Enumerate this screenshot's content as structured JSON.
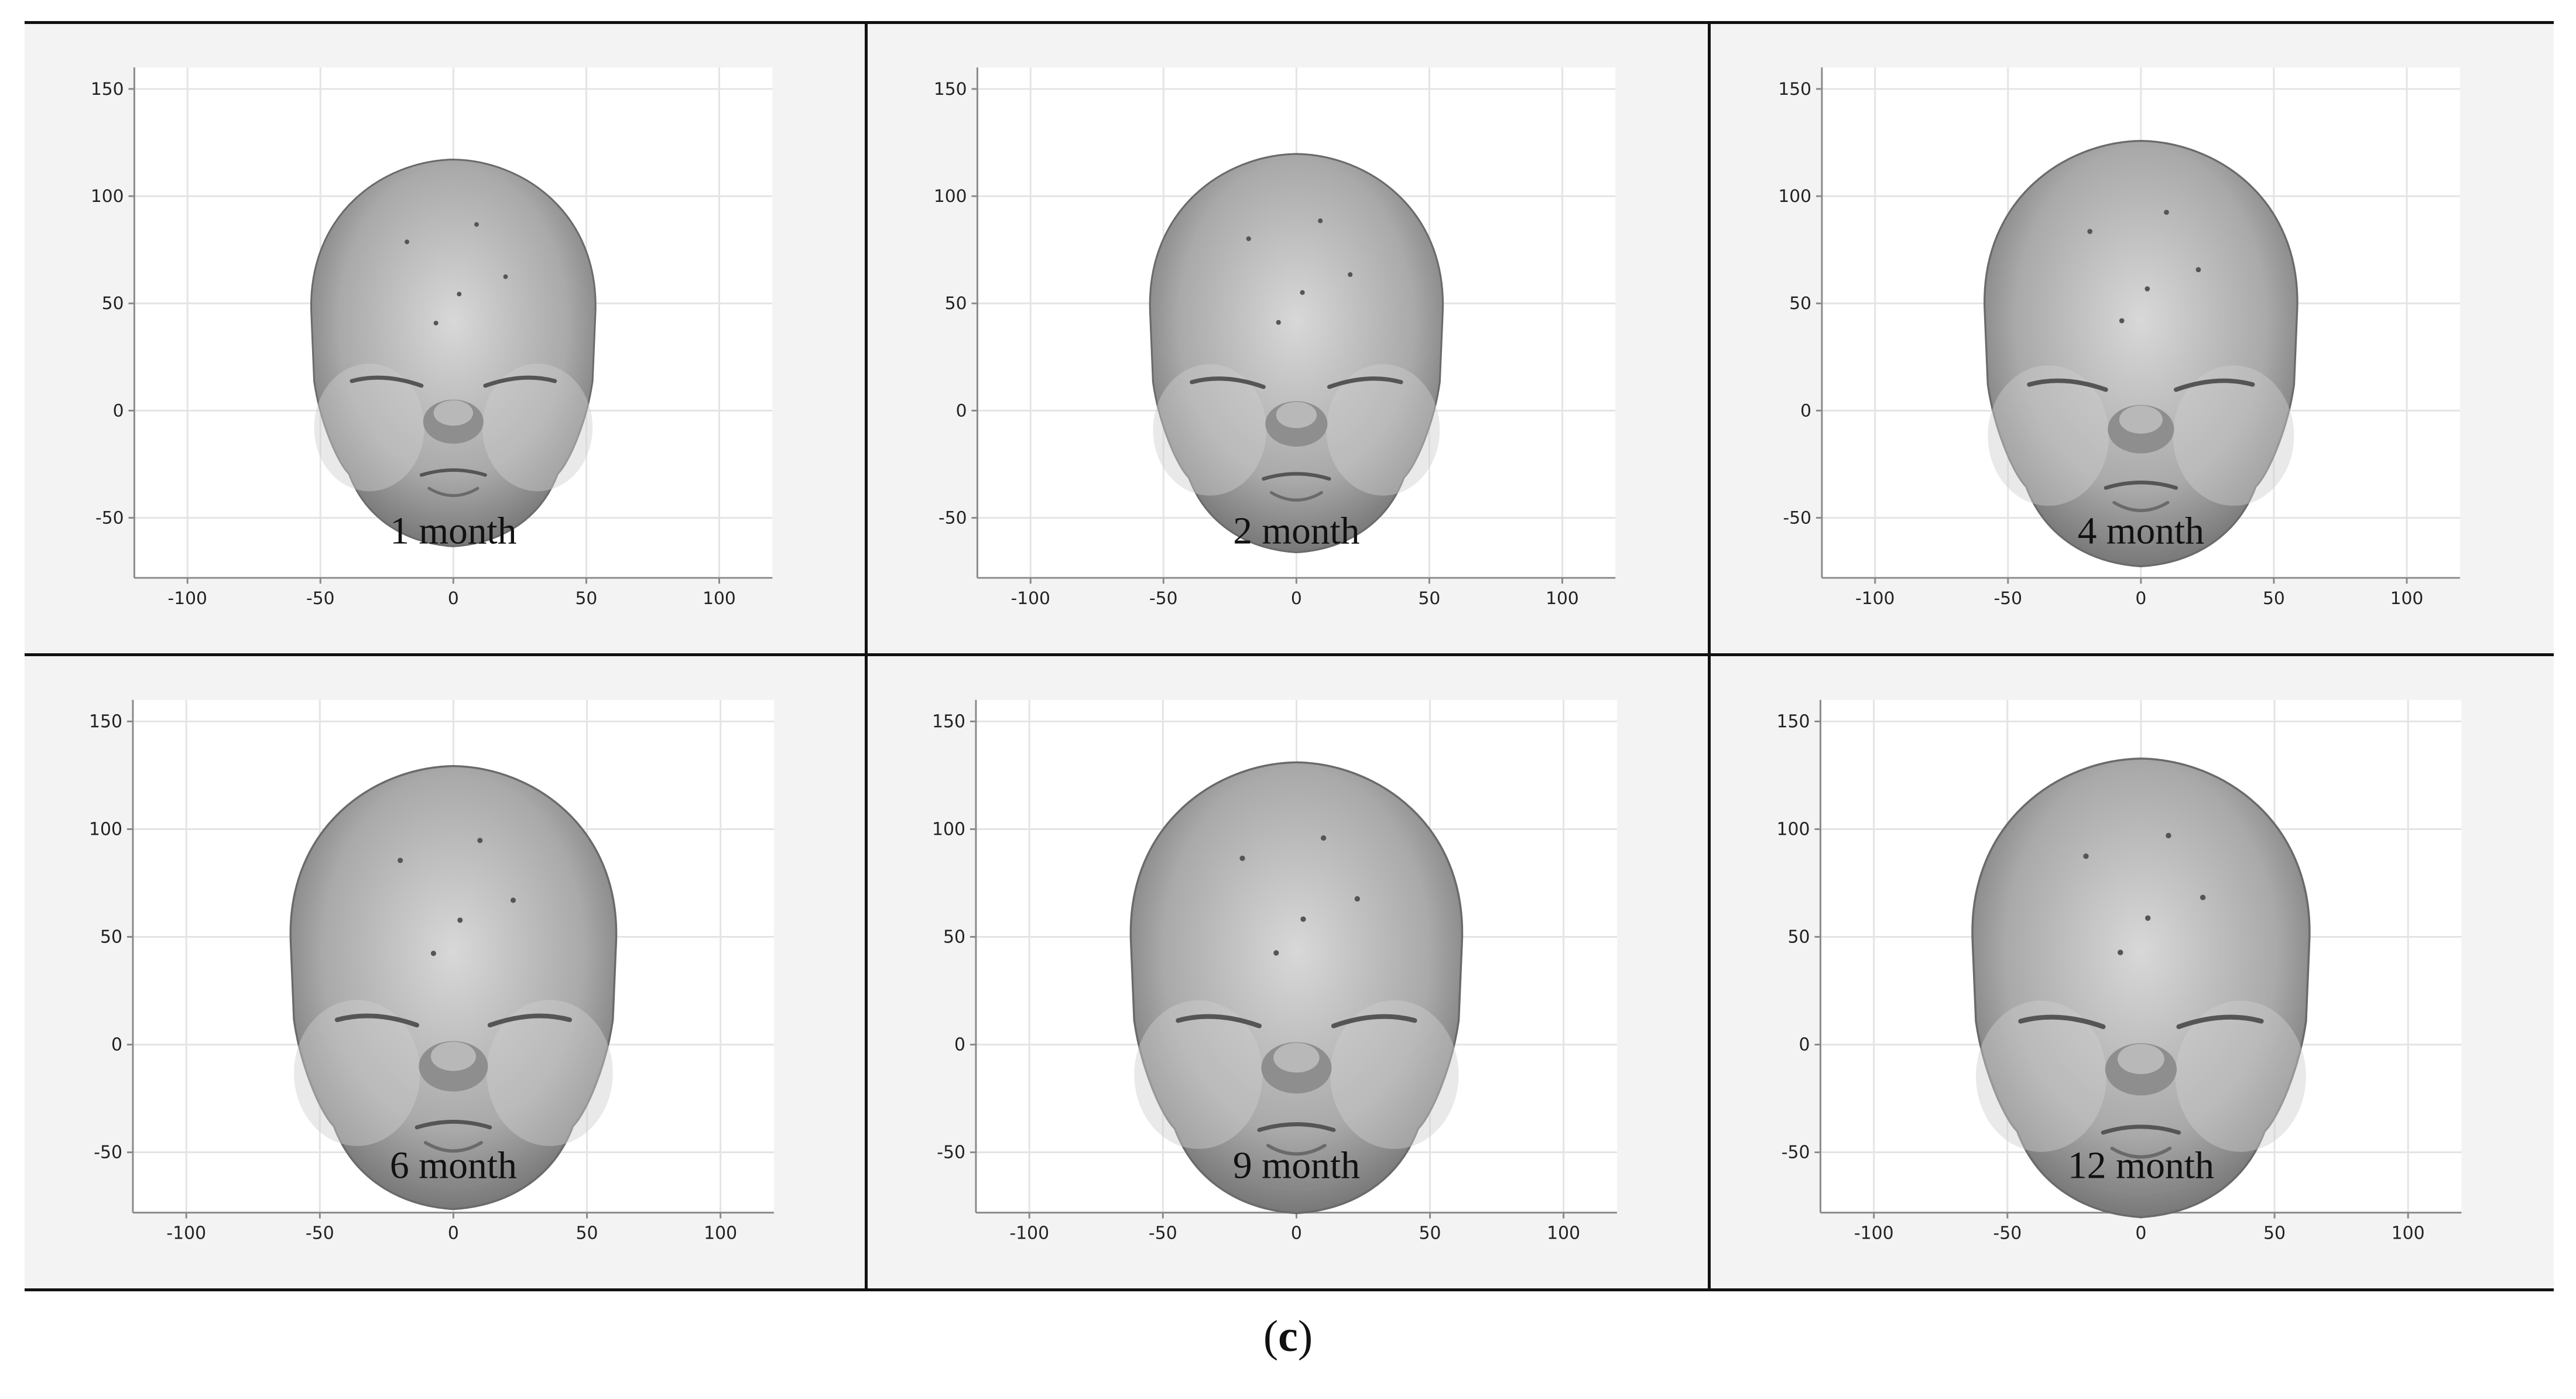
{
  "panels": [
    {
      "label": "1 month"
    },
    {
      "label": "2 month"
    },
    {
      "label": "4 month"
    },
    {
      "label": "6 month"
    },
    {
      "label": "9 month"
    },
    {
      "label": "12 month"
    }
  ],
  "axes": {
    "x_ticks": [
      "-100",
      "-50",
      "0",
      "50",
      "100"
    ],
    "y_ticks": [
      "150",
      "100",
      "50",
      "0",
      "-50"
    ],
    "xlim": [
      -120,
      120
    ],
    "ylim": [
      -78,
      160
    ],
    "grid": true
  },
  "caption": {
    "open": "(",
    "letter": "c",
    "close": ")"
  }
}
